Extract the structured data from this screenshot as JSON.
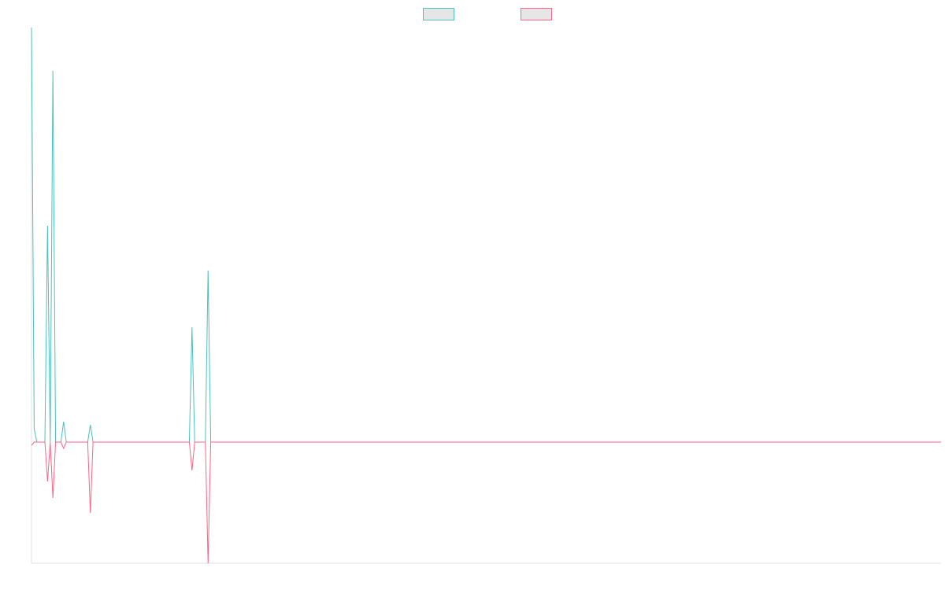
{
  "chart_data": {
    "type": "line",
    "x": [
      0,
      1,
      2,
      5,
      6,
      7,
      8,
      9,
      11,
      12,
      13,
      21,
      22,
      23,
      59,
      60,
      61,
      65,
      66,
      67,
      340
    ],
    "series": [
      {
        "color": "#4bc0c0",
        "values": [
          527,
          17,
          0,
          0,
          275,
          0,
          472,
          0,
          0,
          26,
          0,
          0,
          22,
          0,
          0,
          146,
          0,
          0,
          218,
          0,
          0
        ]
      },
      {
        "color": "#ff6384",
        "values": [
          -4,
          0,
          0,
          0,
          -50,
          0,
          -71,
          0,
          0,
          -8,
          0,
          0,
          -90,
          0,
          0,
          -36,
          0,
          0,
          -154,
          0,
          0
        ]
      }
    ],
    "xlim": [
      0,
      340
    ],
    "ylim": [
      -154,
      527
    ],
    "legend": "top"
  }
}
